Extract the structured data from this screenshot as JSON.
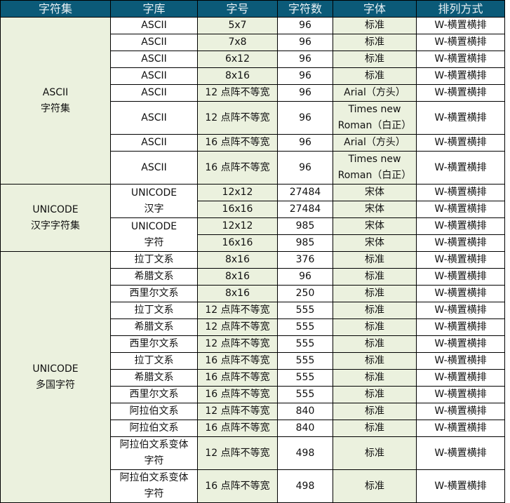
{
  "headers": [
    "字符集",
    "字库",
    "字号",
    "字符数",
    "字体",
    "排列方式"
  ],
  "colors": {
    "header_bg": "#0b5a78",
    "green_cell": "#ebf1de"
  },
  "groups": [
    {
      "charset": [
        "ASCII",
        "字符集"
      ],
      "libs": [
        {
          "name": [
            "ASCII"
          ],
          "rows": [
            {
              "size": "5x7",
              "count": "96",
              "font": [
                "标准"
              ],
              "layout": "W-横置横排"
            }
          ]
        },
        {
          "name": [
            "ASCII"
          ],
          "rows": [
            {
              "size": "7x8",
              "count": "96",
              "font": [
                "标准"
              ],
              "layout": "W-横置横排"
            }
          ]
        },
        {
          "name": [
            "ASCII"
          ],
          "rows": [
            {
              "size": "6x12",
              "count": "96",
              "font": [
                "标准"
              ],
              "layout": "W-横置横排"
            }
          ]
        },
        {
          "name": [
            "ASCII"
          ],
          "rows": [
            {
              "size": "8x16",
              "count": "96",
              "font": [
                "标准"
              ],
              "layout": "W-横置横排"
            }
          ]
        },
        {
          "name": [
            "ASCII"
          ],
          "rows": [
            {
              "size": "12 点阵不等宽",
              "count": "96",
              "font": [
                "Arial（方头）"
              ],
              "layout": "W-横置横排"
            }
          ]
        },
        {
          "name": [
            "ASCII"
          ],
          "rows": [
            {
              "size": "12 点阵不等宽",
              "count": "96",
              "font": [
                "Times new",
                "Roman（白正）"
              ],
              "layout": "W-横置横排"
            }
          ]
        },
        {
          "name": [
            "ASCII"
          ],
          "rows": [
            {
              "size": "16 点阵不等宽",
              "count": "96",
              "font": [
                "Arial（方头）"
              ],
              "layout": "W-横置横排"
            }
          ]
        },
        {
          "name": [
            "ASCII"
          ],
          "rows": [
            {
              "size": "16 点阵不等宽",
              "count": "96",
              "font": [
                "Times new",
                "Roman（白正）"
              ],
              "layout": "W-横置横排"
            }
          ]
        }
      ]
    },
    {
      "charset": [
        "UNICODE",
        "汉字字符集"
      ],
      "libs": [
        {
          "name": [
            "UNICODE",
            "汉字"
          ],
          "rows": [
            {
              "size": "12x12",
              "count": "27484",
              "font": [
                "宋体"
              ],
              "layout": "W-横置横排"
            },
            {
              "size": "16x16",
              "count": "27484",
              "font": [
                "宋体"
              ],
              "layout": "W-横置横排"
            }
          ]
        },
        {
          "name": [
            "UNICODE",
            "字符"
          ],
          "rows": [
            {
              "size": "12x12",
              "count": "985",
              "font": [
                "宋体"
              ],
              "layout": "W-横置横排"
            },
            {
              "size": "16x16",
              "count": "985",
              "font": [
                "宋体"
              ],
              "layout": "W-横置横排"
            }
          ]
        }
      ]
    },
    {
      "charset": [
        "UNICODE",
        "多国字符"
      ],
      "libs": [
        {
          "name": [
            "拉丁文系"
          ],
          "rows": [
            {
              "size": "8x16",
              "count": "376",
              "font": [
                "标准"
              ],
              "layout": "W-横置横排"
            }
          ]
        },
        {
          "name": [
            "希腊文系"
          ],
          "rows": [
            {
              "size": "8x16",
              "count": "96",
              "font": [
                "标准"
              ],
              "layout": "W-横置横排"
            }
          ]
        },
        {
          "name": [
            "西里尔文系"
          ],
          "rows": [
            {
              "size": "8x16",
              "count": "250",
              "font": [
                "标准"
              ],
              "layout": "W-横置横排"
            }
          ]
        },
        {
          "name": [
            "拉丁文系"
          ],
          "rows": [
            {
              "size": "12 点阵不等宽",
              "count": "555",
              "font": [
                "标准"
              ],
              "layout": "W-横置横排"
            }
          ]
        },
        {
          "name": [
            "希腊文系"
          ],
          "rows": [
            {
              "size": "12 点阵不等宽",
              "count": "555",
              "font": [
                "标准"
              ],
              "layout": "W-横置横排"
            }
          ]
        },
        {
          "name": [
            "西里尔文系"
          ],
          "rows": [
            {
              "size": "12 点阵不等宽",
              "count": "555",
              "font": [
                "标准"
              ],
              "layout": "W-横置横排"
            }
          ]
        },
        {
          "name": [
            "拉丁文系"
          ],
          "rows": [
            {
              "size": "16 点阵不等宽",
              "count": "555",
              "font": [
                "标准"
              ],
              "layout": "W-横置横排"
            }
          ]
        },
        {
          "name": [
            "希腊文系"
          ],
          "rows": [
            {
              "size": "16 点阵不等宽",
              "count": "555",
              "font": [
                "标准"
              ],
              "layout": "W-横置横排"
            }
          ]
        },
        {
          "name": [
            "西里尔文系"
          ],
          "rows": [
            {
              "size": "16 点阵不等宽",
              "count": "555",
              "font": [
                "标准"
              ],
              "layout": "W-横置横排"
            }
          ]
        },
        {
          "name": [
            "阿拉伯文系"
          ],
          "rows": [
            {
              "size": "12 点阵不等宽",
              "count": "840",
              "font": [
                "标准"
              ],
              "layout": "W-横置横排"
            }
          ]
        },
        {
          "name": [
            "阿拉伯文系"
          ],
          "rows": [
            {
              "size": "16 点阵不等宽",
              "count": "840",
              "font": [
                "标准"
              ],
              "layout": "W-横置横排"
            }
          ]
        },
        {
          "name": [
            "阿拉伯文系变体",
            "字符"
          ],
          "rows": [
            {
              "size": "12 点阵不等宽",
              "count": "498",
              "font": [
                "标准"
              ],
              "layout": "W-横置横排"
            }
          ]
        },
        {
          "name": [
            "阿拉伯文系变体",
            "字符"
          ],
          "rows": [
            {
              "size": "16 点阵不等宽",
              "count": "498",
              "font": [
                "标准"
              ],
              "layout": "W-横置横排"
            }
          ]
        }
      ]
    }
  ]
}
